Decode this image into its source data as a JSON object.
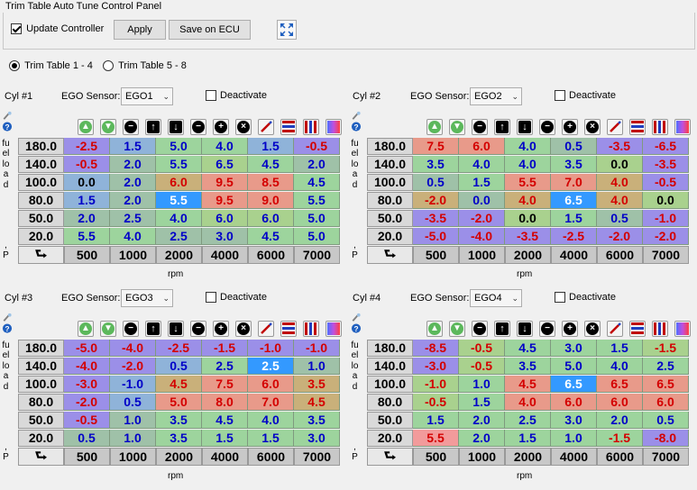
{
  "panel_title": "Trim Table Auto Tune Control Panel",
  "update_controller": {
    "label": "Update Controller",
    "checked": true
  },
  "apply_label": "Apply",
  "save_label": "Save on ECU",
  "radios": [
    {
      "label": "Trim Table 1 - 4",
      "selected": true
    },
    {
      "label": "Trim Table 5 - 8",
      "selected": false
    }
  ],
  "y_axis_title": "fuelload",
  "y_axis_suffix": ",P",
  "x_axis_title": "rpm",
  "colors": {
    "red": "#d40000",
    "blue": "#0000c8",
    "black": "#000000"
  },
  "toolbar_icons": [
    "increase-icon",
    "decrease-icon",
    "minus-icon",
    "up-arrow-icon",
    "down-arrow-icon",
    "subtract-icon",
    "add-icon",
    "close-icon",
    "edit-icon",
    "color-rows-icon",
    "color-columns-icon",
    "gradient-icon"
  ],
  "tables": [
    {
      "cyl_label": "Cyl #1",
      "ego_label": "EGO Sensor:",
      "ego_value": "EGO1",
      "deactivate_label": "Deactivate",
      "y_labels": [
        "180.0",
        "140.0",
        "100.0",
        "80.0",
        "50.0",
        "20.0"
      ],
      "x_labels": [
        "500",
        "1000",
        "2000",
        "4000",
        "6000",
        "7000"
      ],
      "rows": [
        [
          "-2.5",
          "1.5",
          "5.0",
          "4.0",
          "1.5",
          "-0.5"
        ],
        [
          "-0.5",
          "2.0",
          "5.5",
          "6.5",
          "4.5",
          "2.0"
        ],
        [
          "0.0",
          "2.0",
          "6.0",
          "9.5",
          "8.5",
          "4.5"
        ],
        [
          "1.5",
          "2.0",
          "5.5",
          "9.5",
          "9.0",
          "5.5"
        ],
        [
          "2.0",
          "2.5",
          "4.0",
          "6.0",
          "6.0",
          "5.0"
        ],
        [
          "5.5",
          "4.0",
          "2.5",
          "3.0",
          "4.5",
          "5.0"
        ]
      ],
      "bg": [
        [
          "#9b8fe8",
          "#8fb3d9",
          "#9dd49d",
          "#9dd49d",
          "#8fb3d9",
          "#9b8fe8"
        ],
        [
          "#9b8fe8",
          "#9fc1a8",
          "#9dd49d",
          "#a9d18e",
          "#9dd49d",
          "#9fc1a8"
        ],
        [
          "#8fb3d9",
          "#9fc1a8",
          "#c9b07a",
          "#e89a8a",
          "#e89a8a",
          "#9dd49d"
        ],
        [
          "#8fb3d9",
          "#9fc1a8",
          "#3399ff",
          "#e89a8a",
          "#e89a8a",
          "#9dd49d"
        ],
        [
          "#9fc1a8",
          "#9fc1a8",
          "#9dd49d",
          "#a9d18e",
          "#a9d18e",
          "#9dd49d"
        ],
        [
          "#9dd49d",
          "#9dd49d",
          "#9fc1a8",
          "#9fc1a8",
          "#9dd49d",
          "#9dd49d"
        ]
      ],
      "fg": [
        [
          "red",
          "blue",
          "blue",
          "blue",
          "blue",
          "red"
        ],
        [
          "red",
          "blue",
          "blue",
          "blue",
          "blue",
          "blue"
        ],
        [
          "black",
          "blue",
          "red",
          "red",
          "red",
          "blue"
        ],
        [
          "blue",
          "blue",
          "white",
          "red",
          "red",
          "blue"
        ],
        [
          "blue",
          "blue",
          "blue",
          "blue",
          "blue",
          "blue"
        ],
        [
          "blue",
          "blue",
          "blue",
          "blue",
          "blue",
          "blue"
        ]
      ]
    },
    {
      "cyl_label": "Cyl #2",
      "ego_label": "EGO Sensor:",
      "ego_value": "EGO2",
      "deactivate_label": "Deactivate",
      "y_labels": [
        "180.0",
        "140.0",
        "100.0",
        "80.0",
        "50.0",
        "20.0"
      ],
      "x_labels": [
        "500",
        "1000",
        "2000",
        "4000",
        "6000",
        "7000"
      ],
      "rows": [
        [
          "7.5",
          "6.0",
          "4.0",
          "0.5",
          "-3.5",
          "-6.5"
        ],
        [
          "3.5",
          "4.0",
          "4.0",
          "3.5",
          "0.0",
          "-3.5"
        ],
        [
          "0.5",
          "1.5",
          "5.5",
          "7.0",
          "4.0",
          "-0.5"
        ],
        [
          "-2.0",
          "0.0",
          "4.0",
          "6.5",
          "4.0",
          "0.0"
        ],
        [
          "-3.5",
          "-2.0",
          "0.0",
          "1.5",
          "0.5",
          "-1.0"
        ],
        [
          "-5.0",
          "-4.0",
          "-3.5",
          "-2.5",
          "-2.0",
          "-2.0"
        ]
      ],
      "bg": [
        [
          "#e89a8a",
          "#e89a8a",
          "#9dd49d",
          "#9fc1a8",
          "#9b8fe8",
          "#9b8fe8"
        ],
        [
          "#9dd49d",
          "#9dd49d",
          "#9dd49d",
          "#9dd49d",
          "#a9d18e",
          "#9b8fe8"
        ],
        [
          "#9fc1a8",
          "#9dd49d",
          "#e89a8a",
          "#e89a8a",
          "#c9b07a",
          "#9b8fe8"
        ],
        [
          "#c9b07a",
          "#9fc1a8",
          "#c9b07a",
          "#3399ff",
          "#c9b07a",
          "#a9d18e"
        ],
        [
          "#9b8fe8",
          "#9b8fe8",
          "#a9d18e",
          "#9dd49d",
          "#9fc1a8",
          "#9b8fe8"
        ],
        [
          "#9b8fe8",
          "#9b8fe8",
          "#9b8fe8",
          "#9b8fe8",
          "#9b8fe8",
          "#9b8fe8"
        ]
      ],
      "fg": [
        [
          "red",
          "red",
          "blue",
          "blue",
          "red",
          "red"
        ],
        [
          "blue",
          "blue",
          "blue",
          "blue",
          "black",
          "red"
        ],
        [
          "blue",
          "blue",
          "red",
          "red",
          "red",
          "red"
        ],
        [
          "red",
          "blue",
          "red",
          "white",
          "red",
          "black"
        ],
        [
          "red",
          "red",
          "black",
          "blue",
          "blue",
          "red"
        ],
        [
          "red",
          "red",
          "red",
          "red",
          "red",
          "red"
        ]
      ]
    },
    {
      "cyl_label": "Cyl #3",
      "ego_label": "EGO Sensor:",
      "ego_value": "EGO3",
      "deactivate_label": "Deactivate",
      "y_labels": [
        "180.0",
        "140.0",
        "100.0",
        "80.0",
        "50.0",
        "20.0"
      ],
      "x_labels": [
        "500",
        "1000",
        "2000",
        "4000",
        "6000",
        "7000"
      ],
      "rows": [
        [
          "-5.0",
          "-4.0",
          "-2.5",
          "-1.5",
          "-1.0",
          "-1.0"
        ],
        [
          "-4.0",
          "-2.0",
          "0.5",
          "2.5",
          "2.5",
          "1.0"
        ],
        [
          "-3.0",
          "-1.0",
          "4.5",
          "7.5",
          "6.0",
          "3.5"
        ],
        [
          "-2.0",
          "0.5",
          "5.0",
          "8.0",
          "7.0",
          "4.5"
        ],
        [
          "-0.5",
          "1.0",
          "3.5",
          "4.5",
          "4.0",
          "3.5"
        ],
        [
          "0.5",
          "1.0",
          "3.5",
          "1.5",
          "1.5",
          "3.0"
        ]
      ],
      "bg": [
        [
          "#9b8fe8",
          "#9b8fe8",
          "#9b8fe8",
          "#9b8fe8",
          "#9b8fe8",
          "#9b8fe8"
        ],
        [
          "#9b8fe8",
          "#9b8fe8",
          "#8fb3d9",
          "#9dd49d",
          "#3399ff",
          "#9fc1a8"
        ],
        [
          "#9b8fe8",
          "#8fb3d9",
          "#c9b07a",
          "#e89a8a",
          "#e89a8a",
          "#c9b07a"
        ],
        [
          "#9b8fe8",
          "#8fb3d9",
          "#e89a8a",
          "#e89a8a",
          "#e89a8a",
          "#c9b07a"
        ],
        [
          "#9b8fe8",
          "#9fc1a8",
          "#9dd49d",
          "#9dd49d",
          "#9dd49d",
          "#9dd49d"
        ],
        [
          "#9fc1a8",
          "#9fc1a8",
          "#9dd49d",
          "#9dd49d",
          "#9dd49d",
          "#9dd49d"
        ]
      ],
      "fg": [
        [
          "red",
          "red",
          "red",
          "red",
          "red",
          "red"
        ],
        [
          "red",
          "red",
          "blue",
          "blue",
          "white",
          "blue"
        ],
        [
          "red",
          "blue",
          "red",
          "red",
          "red",
          "red"
        ],
        [
          "red",
          "blue",
          "red",
          "red",
          "red",
          "red"
        ],
        [
          "red",
          "blue",
          "blue",
          "blue",
          "blue",
          "blue"
        ],
        [
          "blue",
          "blue",
          "blue",
          "blue",
          "blue",
          "blue"
        ]
      ]
    },
    {
      "cyl_label": "Cyl #4",
      "ego_label": "EGO Sensor:",
      "ego_value": "EGO4",
      "deactivate_label": "Deactivate",
      "y_labels": [
        "180.0",
        "140.0",
        "100.0",
        "80.0",
        "50.0",
        "20.0"
      ],
      "x_labels": [
        "500",
        "1000",
        "2000",
        "4000",
        "6000",
        "7000"
      ],
      "rows": [
        [
          "-8.5",
          "-0.5",
          "4.5",
          "3.0",
          "1.5",
          "-1.5"
        ],
        [
          "-3.0",
          "-0.5",
          "3.5",
          "5.0",
          "4.0",
          "2.5"
        ],
        [
          "-1.0",
          "1.0",
          "4.5",
          "6.5",
          "6.5",
          "6.5"
        ],
        [
          "-0.5",
          "1.5",
          "4.0",
          "6.0",
          "6.0",
          "6.0"
        ],
        [
          "1.5",
          "2.0",
          "2.5",
          "3.0",
          "2.0",
          "0.5"
        ],
        [
          "5.5",
          "2.0",
          "1.5",
          "1.0",
          "-1.5",
          "-8.0"
        ]
      ],
      "bg": [
        [
          "#9b8fe8",
          "#a9d18e",
          "#9dd49d",
          "#9dd49d",
          "#9dd49d",
          "#a9d18e"
        ],
        [
          "#9b8fe8",
          "#a9d18e",
          "#9dd49d",
          "#9dd49d",
          "#9dd49d",
          "#9dd49d"
        ],
        [
          "#a9d18e",
          "#9dd49d",
          "#e89a8a",
          "#3399ff",
          "#e89a8a",
          "#e89a8a"
        ],
        [
          "#a9d18e",
          "#9dd49d",
          "#e89a8a",
          "#e89a8a",
          "#e89a8a",
          "#e89a8a"
        ],
        [
          "#9dd49d",
          "#9dd49d",
          "#9dd49d",
          "#9dd49d",
          "#9dd49d",
          "#9dd49d"
        ],
        [
          "#f29b9b",
          "#9dd49d",
          "#9dd49d",
          "#9dd49d",
          "#9dd49d",
          "#9b8fe8"
        ]
      ],
      "fg": [
        [
          "red",
          "red",
          "blue",
          "blue",
          "blue",
          "red"
        ],
        [
          "red",
          "red",
          "blue",
          "blue",
          "blue",
          "blue"
        ],
        [
          "red",
          "blue",
          "red",
          "white",
          "red",
          "red"
        ],
        [
          "red",
          "blue",
          "red",
          "red",
          "red",
          "red"
        ],
        [
          "blue",
          "blue",
          "blue",
          "blue",
          "blue",
          "blue"
        ],
        [
          "red",
          "blue",
          "blue",
          "blue",
          "red",
          "red"
        ]
      ]
    }
  ]
}
